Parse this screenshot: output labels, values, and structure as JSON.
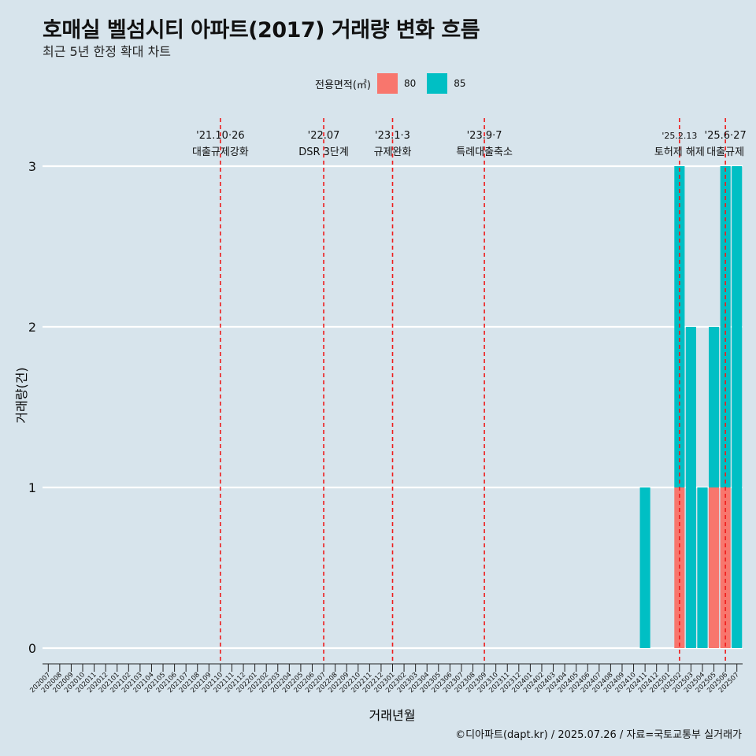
{
  "title": "호매실 벨섬시티 아파트(2017) 거래량 변화 흐름",
  "subtitle": "최근 5년 한정 확대 차트",
  "caption": "©디아파트(dapt.kr) / 2025.07.26 / 자료=국토교통부 실거래가",
  "legend": {
    "title": "전용면적(㎡)",
    "items": [
      {
        "label": "80",
        "color": "#f8766d"
      },
      {
        "label": "85",
        "color": "#00bfc4"
      }
    ]
  },
  "chart_data": {
    "type": "bar",
    "xlabel": "거래년월",
    "ylabel": "거래량(건)",
    "ylim": [
      0,
      3
    ],
    "yticks": [
      0,
      1,
      2,
      3
    ],
    "categories": [
      "202007",
      "202008",
      "202009",
      "202010",
      "202011",
      "202012",
      "202101",
      "202102",
      "202103",
      "202104",
      "202105",
      "202106",
      "202107",
      "202108",
      "202109",
      "202110",
      "202111",
      "202112",
      "202201",
      "202202",
      "202203",
      "202204",
      "202205",
      "202206",
      "202207",
      "202208",
      "202209",
      "202210",
      "202211",
      "202212",
      "202301",
      "202302",
      "202303",
      "202304",
      "202305",
      "202306",
      "202307",
      "202308",
      "202309",
      "202310",
      "202311",
      "202312",
      "202401",
      "202402",
      "202403",
      "202404",
      "202405",
      "202406",
      "202407",
      "202408",
      "202409",
      "202410",
      "202411",
      "202412",
      "202501",
      "202502",
      "202503",
      "202504",
      "202505",
      "202506",
      "202507"
    ],
    "series": [
      {
        "name": "80",
        "color": "#f8766d",
        "values": [
          0,
          0,
          0,
          0,
          0,
          0,
          0,
          0,
          0,
          0,
          0,
          0,
          0,
          0,
          0,
          0,
          0,
          0,
          0,
          0,
          0,
          0,
          0,
          0,
          0,
          0,
          0,
          0,
          0,
          0,
          0,
          0,
          0,
          0,
          0,
          0,
          0,
          0,
          0,
          0,
          0,
          0,
          0,
          0,
          0,
          0,
          0,
          0,
          0,
          0,
          0,
          0,
          0,
          0,
          0,
          1,
          0,
          0,
          1,
          1,
          0
        ]
      },
      {
        "name": "85",
        "color": "#00bfc4",
        "values": [
          0,
          0,
          0,
          0,
          0,
          0,
          0,
          0,
          0,
          0,
          0,
          0,
          0,
          0,
          0,
          0,
          0,
          0,
          0,
          0,
          0,
          0,
          0,
          0,
          0,
          0,
          0,
          0,
          0,
          0,
          0,
          0,
          0,
          0,
          0,
          0,
          0,
          0,
          0,
          0,
          0,
          0,
          0,
          0,
          0,
          0,
          0,
          0,
          0,
          0,
          0,
          0,
          1,
          0,
          0,
          2,
          2,
          1,
          1,
          2,
          3
        ]
      }
    ],
    "annotations": [
      {
        "at": "202110",
        "date": "'21.10·26",
        "label": "대출규제강화"
      },
      {
        "at": "202207",
        "date": "'22.07",
        "label": "DSR 3단계"
      },
      {
        "at": "202301",
        "date": "'23.1·3",
        "label": "규제완화"
      },
      {
        "at": "202309",
        "date": "'23.9·7",
        "label": "특례대출축소"
      },
      {
        "at": "202502",
        "date": "'25.2.13",
        "label": "토허제 해제"
      },
      {
        "at": "202506",
        "date": "'25.6·27",
        "label": "대출규제"
      }
    ],
    "grid": true,
    "legend_position": "top"
  }
}
